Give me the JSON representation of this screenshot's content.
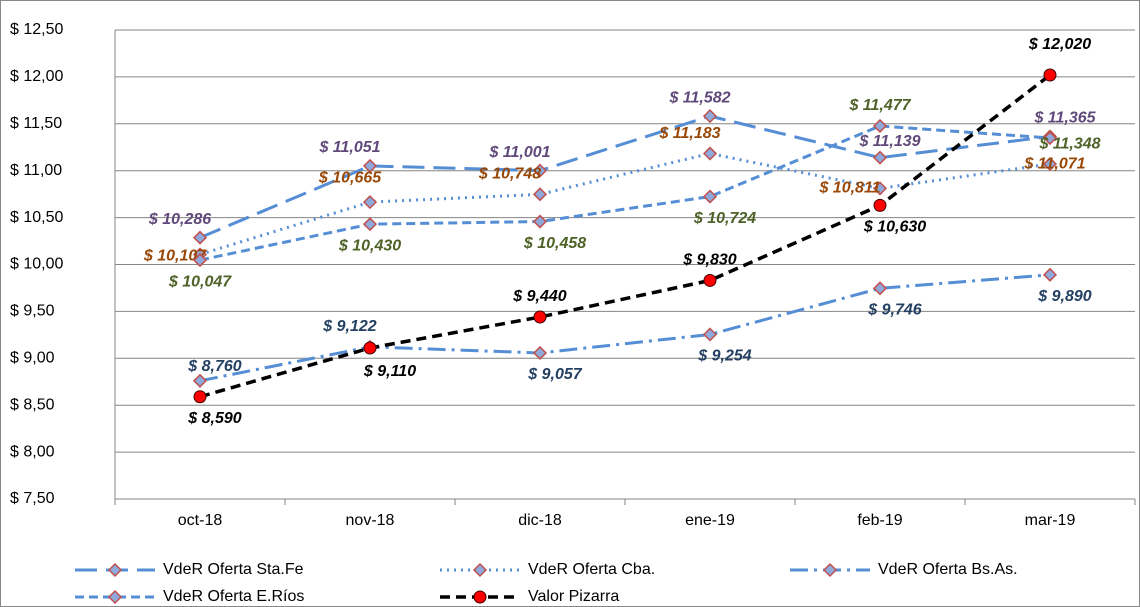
{
  "chart_data": {
    "type": "line",
    "categories": [
      "oct-18",
      "nov-18",
      "dic-18",
      "ene-19",
      "feb-19",
      "mar-19"
    ],
    "ylim": [
      7.5,
      12.5
    ],
    "yticks": [
      {
        "value": 7.5,
        "label": "$ 7,50"
      },
      {
        "value": 8,
        "label": "$ 8,00"
      },
      {
        "value": 8.5,
        "label": "$ 8,50"
      },
      {
        "value": 9,
        "label": "$ 9,00"
      },
      {
        "value": 9.5,
        "label": "$ 9,50"
      },
      {
        "value": 10,
        "label": "$ 10,00"
      },
      {
        "value": 10.5,
        "label": "$ 10,50"
      },
      {
        "value": 11,
        "label": "$ 11,00"
      },
      {
        "value": 11.5,
        "label": "$ 11,50"
      },
      {
        "value": 12,
        "label": "$ 12,00"
      },
      {
        "value": 12.5,
        "label": "$ 12,50"
      }
    ],
    "grid": true,
    "legend": "bottom",
    "series": [
      {
        "name": "VdeR Oferta Sta.Fe",
        "color": "#558ed5",
        "values": [
          10.286,
          11.051,
          11.001,
          11.582,
          11.139,
          11.365
        ],
        "value_labels": [
          "$ 10,286",
          "$ 11,051",
          "$ 11,001",
          "$ 11,582",
          "$ 11,139",
          "$ 11,365"
        ]
      },
      {
        "name": "VdeR Oferta Cba.",
        "color": "#558ed5",
        "values": [
          10.107,
          10.665,
          10.748,
          11.183,
          10.811,
          11.071
        ],
        "value_labels": [
          "$ 10,107",
          "$ 10,665",
          "$ 10,748",
          "$ 11,183",
          "$ 10,811",
          "$ 11,071"
        ]
      },
      {
        "name": "VdeR Oferta Bs.As.",
        "color": "#558ed5",
        "values": [
          8.76,
          9.122,
          9.057,
          9.254,
          9.746,
          9.89
        ],
        "value_labels": [
          "$ 8,760",
          "$ 9,122",
          "$ 9,057",
          "$ 9,254",
          "$ 9,746",
          "$ 9,890"
        ]
      },
      {
        "name": "VdeR Oferta E.Ríos",
        "color": "#558ed5",
        "values": [
          10.047,
          10.43,
          10.458,
          10.724,
          11.477,
          11.348
        ],
        "value_labels": [
          "$ 10,047",
          "$ 10,430",
          "$ 10,458",
          "$ 10,724",
          "$ 11,477",
          "$ 11,348"
        ]
      },
      {
        "name": "Valor Pizarra",
        "color": "#000000",
        "values": [
          8.59,
          9.11,
          9.44,
          9.83,
          10.63,
          12.02
        ],
        "value_labels": [
          "$ 8,590",
          "$ 9,110",
          "$ 9,440",
          "$ 9,830",
          "$ 10,630",
          "$ 12,020"
        ]
      }
    ]
  }
}
